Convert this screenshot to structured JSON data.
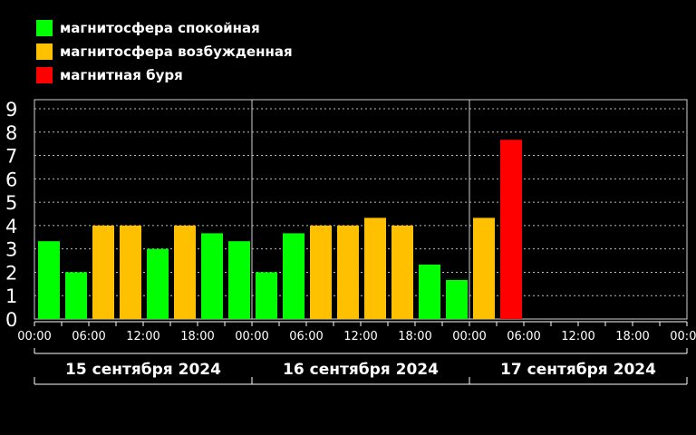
{
  "legend": [
    {
      "label": "магнитосфера спокойная",
      "color": "#00ff00"
    },
    {
      "label": "магнитосфера возбужденная",
      "color": "#ffc000"
    },
    {
      "label": "магнитная буря",
      "color": "#ff0000"
    }
  ],
  "chart_data": {
    "type": "bar",
    "ylim": [
      0,
      9
    ],
    "yticks": [
      "0",
      "1",
      "2",
      "3",
      "4",
      "5",
      "6",
      "7",
      "8",
      "9"
    ],
    "x_tick_labels": [
      "00:00",
      "06:00",
      "12:00",
      "18:00",
      "00:00",
      "06:00",
      "12:00",
      "18:00",
      "00:00",
      "06:00",
      "12:00",
      "18:00",
      "00:00"
    ],
    "days": [
      "15 сентября 2024",
      "16 сентября 2024",
      "17 сентября 2024"
    ],
    "bars_per_day": 8,
    "values": [
      3.33,
      2.0,
      4.0,
      4.0,
      3.0,
      4.0,
      3.67,
      3.33,
      2.0,
      3.67,
      4.0,
      4.0,
      4.33,
      4.0,
      2.33,
      1.67,
      4.33,
      7.67
    ],
    "colors": [
      "#00ff00",
      "#00ff00",
      "#ffc000",
      "#ffc000",
      "#00ff00",
      "#ffc000",
      "#00ff00",
      "#00ff00",
      "#00ff00",
      "#00ff00",
      "#ffc000",
      "#ffc000",
      "#ffc000",
      "#ffc000",
      "#00ff00",
      "#00ff00",
      "#ffc000",
      "#ff0000"
    ],
    "grid": true
  }
}
